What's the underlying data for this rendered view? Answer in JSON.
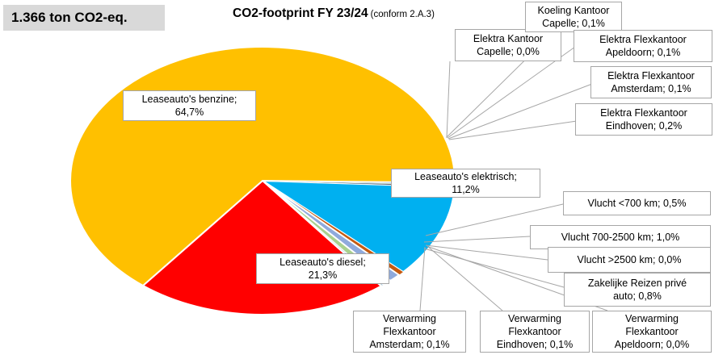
{
  "badge": "1.366 ton CO2-eq.",
  "title": "CO2-footprint FY 23/24",
  "title_note": "(conform 2.A.3)",
  "chart_data": {
    "type": "pie",
    "title": "CO2-footprint FY 23/24",
    "subtitle": "(conform 2.A.3)",
    "slices": [
      {
        "name": "Leaseauto's elektrisch",
        "value": 11.2,
        "label": "Leaseauto's elektrisch;\n11,2%",
        "color": "#00b0f0"
      },
      {
        "name": "Vlucht <700 km",
        "value": 0.5,
        "label": "Vlucht <700 km; 0,5%",
        "color": "#c55a11"
      },
      {
        "name": "Vlucht 700-2500 km",
        "value": 1.0,
        "label": "Vlucht 700-2500  km; 1,0%",
        "color": "#8faadc"
      },
      {
        "name": "Vlucht >2500 km",
        "value": 0.0,
        "label": "Vlucht >2500 km; 0,0%",
        "color": "#7f7f7f"
      },
      {
        "name": "Zakelijke Reizen privé auto",
        "value": 0.8,
        "label": "Zakelijke Reizen privé\nauto; 0,8%",
        "color": "#a9d18e"
      },
      {
        "name": "Verwarming Flexkantoor Apeldoorn",
        "value": 0.0,
        "label": "Verwarming\nFlexkantoor\nApeldoorn; 0,0%",
        "color": "#bdd7ee"
      },
      {
        "name": "Verwarming Flexkantoor Eindhoven",
        "value": 0.1,
        "label": "Verwarming\nFlexkantoor\nEindhoven; 0,1%",
        "color": "#9dc3e6"
      },
      {
        "name": "Verwarming Flexkantoor Amsterdam",
        "value": 0.1,
        "label": "Verwarming\nFlexkantoor\nAmsterdam; 0,1%",
        "color": "#ffe699"
      },
      {
        "name": "Leaseauto's diesel",
        "value": 21.3,
        "label": "Leaseauto's diesel;\n21,3%",
        "color": "#ff0000"
      },
      {
        "name": "Leaseauto's benzine",
        "value": 64.7,
        "label": "Leaseauto's benzine;\n64,7%",
        "color": "#ffc000"
      },
      {
        "name": "Elektra Kantoor Capelle",
        "value": 0.0,
        "label": "Elektra Kantoor\nCapelle; 0,0%",
        "color": "#f4b183"
      },
      {
        "name": "Koeling Kantoor Capelle",
        "value": 0.1,
        "label": "Koeling Kantoor\nCapelle; 0,1%",
        "color": "#c9c9c9"
      },
      {
        "name": "Elektra Flexkantoor Apeldoorn",
        "value": 0.1,
        "label": "Elektra Flexkantoor\nApeldoorn; 0,1%",
        "color": "#2e75b6"
      },
      {
        "name": "Elektra Flexkantoor Amsterdam",
        "value": 0.1,
        "label": "Elektra Flexkantoor\nAmsterdam; 0,1%",
        "color": "#70ad47"
      },
      {
        "name": "Elektra Flexkantoor Eindhoven",
        "value": 0.2,
        "label": "Elektra Flexkantoor\nEindhoven; 0,2%",
        "color": "#44546a"
      }
    ]
  }
}
